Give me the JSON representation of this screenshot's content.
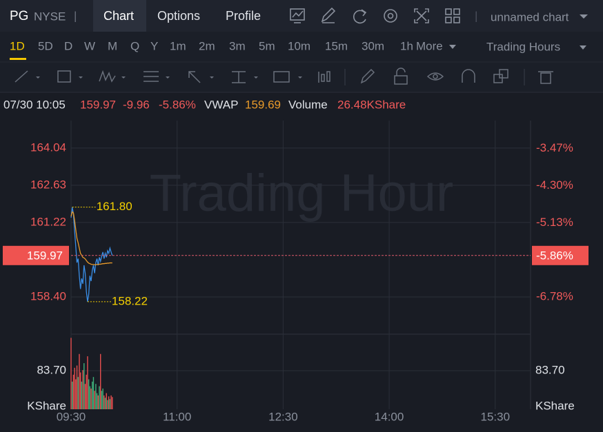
{
  "header": {
    "symbol": "PG",
    "exchange": "NYSE",
    "separator": "|",
    "tabs": [
      "Chart",
      "Options",
      "Profile"
    ],
    "chart_name": "unnamed chart"
  },
  "periods": [
    "1D",
    "5D",
    "D",
    "W",
    "M",
    "Q",
    "Y",
    "1m",
    "2m",
    "3m",
    "5m",
    "10m",
    "15m",
    "30m",
    "1h"
  ],
  "more": "More",
  "session": "Trading Hours",
  "info": {
    "datetime": "07/30 10:05",
    "price": "159.97",
    "change": "-9.96",
    "change_pct": "-5.86%",
    "vwap_label": "VWAP",
    "vwap": "159.69",
    "volume_label": "Volume",
    "volume": "26.48KShare"
  },
  "watermark": "Trading Hour",
  "chart_data": [
    {
      "type": "line",
      "x": [
        "09:30",
        "09:31",
        "09:32",
        "09:33",
        "09:34",
        "09:35",
        "09:36",
        "09:37",
        "09:38",
        "09:39",
        "09:40",
        "09:41",
        "09:42",
        "09:43",
        "09:44",
        "09:45",
        "09:46",
        "09:47",
        "09:48",
        "09:49",
        "09:50",
        "09:51",
        "09:52",
        "09:53",
        "09:54",
        "09:55",
        "09:56",
        "09:57",
        "09:58",
        "09:59",
        "10:00",
        "10:01",
        "10:02",
        "10:03",
        "10:04",
        "10:05"
      ],
      "series": [
        {
          "color": "#3a8ee6",
          "values": [
            161.4,
            161.8,
            161.55,
            160.9,
            160.3,
            159.7,
            159.85,
            159.2,
            158.7,
            159.1,
            158.9,
            159.6,
            159.3,
            158.6,
            158.22,
            158.5,
            159.2,
            159.0,
            159.4,
            159.6,
            159.3,
            159.7,
            159.85,
            159.6,
            159.9,
            159.75,
            159.95,
            160.1,
            159.85,
            160.05,
            159.9,
            160.15,
            160.05,
            160.25,
            160.1,
            159.97
          ]
        },
        {
          "color": "#e89a2a",
          "values": [
            161.45,
            161.62,
            161.58,
            161.3,
            160.95,
            160.62,
            160.45,
            160.25,
            160.05,
            159.98,
            159.9,
            159.88,
            159.84,
            159.78,
            159.72,
            159.68,
            159.66,
            159.64,
            159.63,
            159.63,
            159.62,
            159.62,
            159.63,
            159.63,
            159.64,
            159.64,
            159.65,
            159.66,
            159.66,
            159.67,
            159.67,
            159.68,
            159.68,
            159.69,
            159.69,
            159.69
          ]
        }
      ],
      "xlim": [
        "09:30",
        "16:00"
      ],
      "xticks": [
        "09:30",
        "11:00",
        "12:30",
        "14:00",
        "15:30"
      ],
      "ylim": [
        156.99,
        165.08
      ],
      "yticks": [
        164.04,
        162.63,
        161.22,
        {
          "value": 158.4,
          "label": "158.40"
        }
      ],
      "y2lim": [
        -7.61,
        -2.85
      ],
      "y2ticks": [
        {
          "value": -3.47,
          "label": "-3.47%"
        },
        {
          "value": -4.3,
          "label": "-4.30%"
        },
        {
          "value": -5.13,
          "label": "-5.13%"
        },
        {
          "value": -6.78,
          "label": "-6.78%"
        }
      ],
      "last_value": 159.97,
      "last_change": {
        "value": -5.86,
        "label": "-5.86%"
      },
      "annotations": [
        {
          "x": "09:31",
          "value": 161.8,
          "label": "161.80"
        },
        {
          "x": "09:44",
          "value": 158.22,
          "label": "158.22"
        }
      ],
      "grid": true
    },
    {
      "type": "bar",
      "values": [
        155,
        60,
        75,
        90,
        65,
        95,
        70,
        120,
        80,
        60,
        85,
        100,
        55,
        75,
        115,
        65,
        50,
        45,
        60,
        70,
        40,
        55,
        35,
        30,
        50,
        120,
        40,
        45,
        30,
        25,
        35,
        20,
        28,
        22,
        30,
        26.48
      ],
      "up_color": "#3fb07a",
      "down_color": "#e84f4f",
      "ylim": [
        0,
        163
      ],
      "yticks": [
        {
          "value": 83.7,
          "label": "83.70"
        }
      ],
      "unit": "KShare"
    }
  ]
}
